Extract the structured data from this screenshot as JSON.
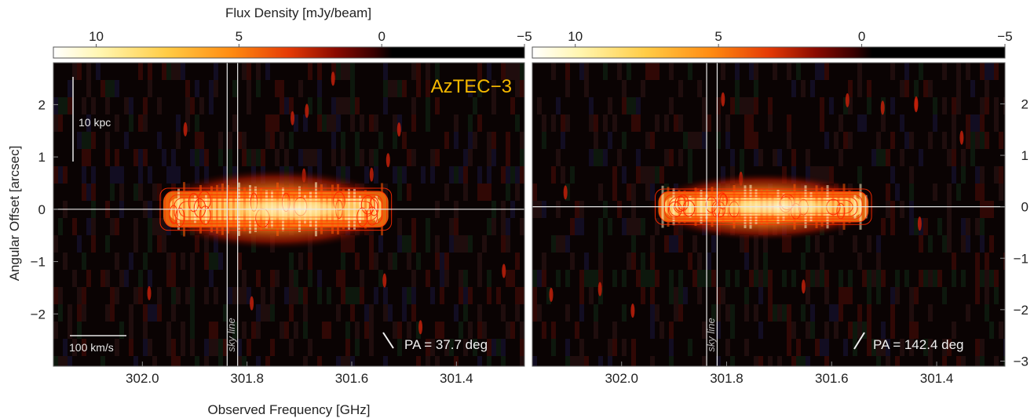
{
  "chart_data": {
    "type": "heatmap",
    "description_free": true,
    "colorbar": {
      "label": "Flux Density [mJy/beam]",
      "range": [
        11.5,
        -5
      ],
      "ticks": [
        10,
        5,
        0,
        -5
      ],
      "tick_labels": [
        "10",
        "5",
        "0",
        "−5"
      ],
      "colormap": [
        "#ffffff",
        "#fff6b0",
        "#ffcc45",
        "#ff8a10",
        "#e53a05",
        "#8a0a00",
        "#3a0000",
        "#000000"
      ]
    },
    "xlabel": "Observed Frequency [GHz]",
    "ylabel": "Angular Offset [arcsec]",
    "xlim": [
      302.17,
      301.27
    ],
    "x_ticks": [
      302.0,
      301.8,
      301.6,
      301.4
    ],
    "x_tick_labels": [
      "302.0",
      "301.8",
      "301.6",
      "301.4"
    ],
    "sky_lines_ghz": [
      301.838,
      301.818
    ],
    "sky_line_label": "sky line",
    "panels": [
      {
        "name": "left",
        "label": "AzTEC−3",
        "pa_label": "PA = 37.7 deg",
        "pa_angle_deg": 37.7,
        "ylim": [
          -3.0,
          2.8
        ],
        "y_ticks": [
          2,
          1,
          0,
          -1,
          -2
        ],
        "y_tick_labels": [
          "2",
          "1",
          "0",
          "−1",
          "−2"
        ],
        "scale_bar_spatial": "10 kpc",
        "scale_bar_spectral": "100 km/s",
        "emission": {
          "x_start": 301.96,
          "x_end": 301.53,
          "y_center": 0.0,
          "y_halfwidth": 0.35
        }
      },
      {
        "name": "right",
        "label": "",
        "pa_label": "PA = 142.4 deg",
        "pa_angle_deg": 142.4,
        "ylim": [
          -3.1,
          2.8
        ],
        "y_ticks": [
          2,
          1,
          0,
          -1,
          -2,
          -3
        ],
        "y_tick_labels": [
          "2",
          "1",
          "0",
          "−1",
          "−2",
          "−3"
        ],
        "emission": {
          "x_start": 301.93,
          "x_end": 301.53,
          "y_center": 0.0,
          "y_halfwidth": 0.3
        }
      }
    ]
  },
  "colors": {
    "label_accent": "#f5b800",
    "contour": "#ff2a00",
    "overlay_line": "#e8e8e8"
  }
}
